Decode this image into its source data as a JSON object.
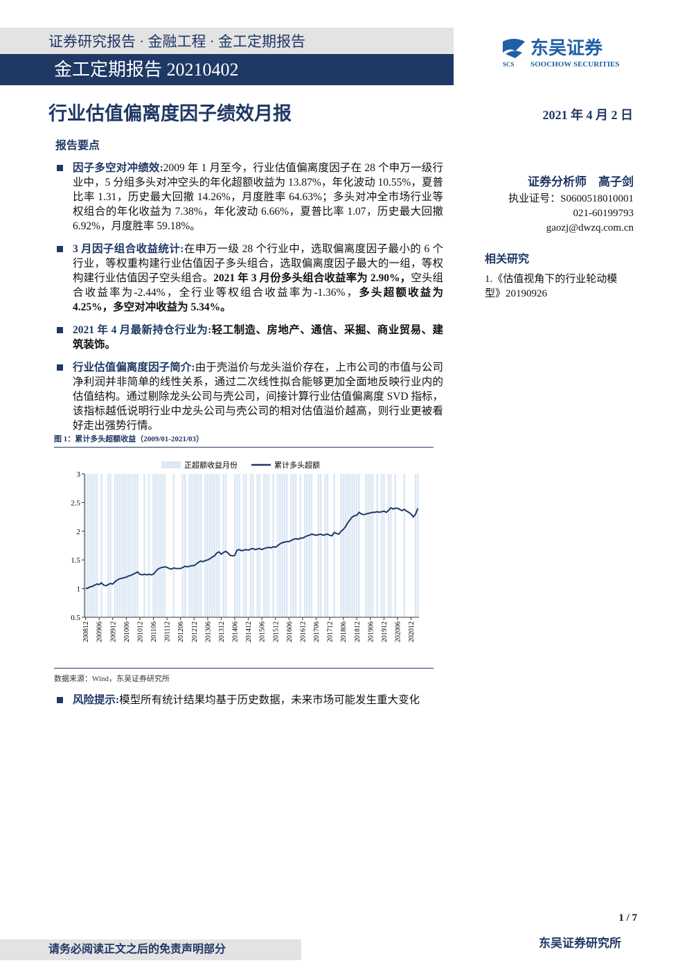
{
  "header": {
    "series": "证券研究报告 · 金融工程 · 金工定期报告",
    "banner": "金工定期报告 20210402",
    "logo_abbr": "SCS",
    "logo_name": "东吴证券",
    "logo_en": "SOOCHOW SECURITIES"
  },
  "title": "行业估值偏离度因子绩效月报",
  "date": "2021 年 4 月 2 日",
  "key_points": {
    "heading": "报告要点",
    "bullets": [
      {
        "label": "因子多空对冲绩效:",
        "parts": [
          {
            "text": "2009 年 1 月至今，行业估值偏离度因子在 28 个申万一级行业中，5 分组多头对冲空头的年化超额收益为 13.87%，年化波动 10.55%，夏普比率 1.31，历史最大回撤 14.26%，月度胜率 64.63%；多头对冲全市场行业等权组合的年化收益为 7.38%，年化波动 6.66%，夏普比率 1.07，历史最大回撤 6.92%，月度胜率 59.18%。"
          }
        ]
      },
      {
        "label": "3 月因子组合收益统计:",
        "parts": [
          {
            "text": "在申万一级 28 个行业中，选取偏离度因子最小的 6 个行业，等权重构建行业估值因子多头组合，选取偏离度因子最大的一组，等权构建行业估值因子空头组合。"
          },
          {
            "text": "2021 年 3 月份多头组合收益率为 2.90%，",
            "bold": true
          },
          {
            "text": "空头组合收益率为-2.44%，全行业等权组合收益率为-1.36%，"
          },
          {
            "text": "多头超额收益为 4.25%，多空对冲收益为 5.34%。",
            "bold": true
          }
        ]
      },
      {
        "label": "2021 年 4 月最新持仓行业为:",
        "parts": [
          {
            "text": "轻工制造、房地产、通信、采掘、商业贸易、建筑装饰。",
            "bold": true
          }
        ]
      },
      {
        "label": "行业估值偏离度因子简介:",
        "parts": [
          {
            "text": "由于壳溢价与龙头溢价存在，上市公司的市值与公司净利润并非简单的线性关系，通过二次线性拟合能够更加全面地反映行业内的估值结构。通过剔除龙头公司与壳公司，间接计算行业估值偏离度 SVD 指标，该指标越低说明行业中龙头公司与壳公司的相对估值溢价越高，则行业更被看好走出强势行情。"
          }
        ]
      }
    ]
  },
  "analyst": {
    "role": "证券分析师",
    "name": "高子剑",
    "license": "执业证号：S0600518010001",
    "phone": "021-60199793",
    "email": "gaozj@dwzq.com.cn"
  },
  "related": {
    "heading": "相关研究",
    "items": [
      "1.《估值视角下的行业轮动模型》20190926"
    ]
  },
  "figure": {
    "caption": "图 1：累计多头超额收益（2009/01-2021/03）",
    "source": "数据来源：Wind，东吴证券研究所"
  },
  "chart_data": {
    "type": "bar-line",
    "categories": [
      "200812",
      null,
      null,
      null,
      null,
      null,
      "200906",
      null,
      null,
      null,
      null,
      null,
      "200912",
      null,
      null,
      null,
      null,
      null,
      "201006",
      null,
      null,
      null,
      null,
      null,
      "201012",
      null,
      null,
      null,
      null,
      null,
      "201106",
      null,
      null,
      null,
      null,
      null,
      "201112",
      null,
      null,
      null,
      null,
      null,
      "201206",
      null,
      null,
      null,
      null,
      null,
      "201212",
      null,
      null,
      null,
      null,
      null,
      "201306",
      null,
      null,
      null,
      null,
      null,
      "201312",
      null,
      null,
      null,
      null,
      null,
      "201406",
      null,
      null,
      null,
      null,
      null,
      "201412",
      null,
      null,
      null,
      null,
      null,
      "201506",
      null,
      null,
      null,
      null,
      null,
      "201512",
      null,
      null,
      null,
      null,
      null,
      "201606",
      null,
      null,
      null,
      null,
      null,
      "201612",
      null,
      null,
      null,
      null,
      null,
      "201706",
      null,
      null,
      null,
      null,
      null,
      "201712",
      null,
      null,
      null,
      null,
      null,
      "201806",
      null,
      null,
      null,
      null,
      null,
      "201812",
      null,
      null,
      null,
      null,
      null,
      "201906",
      null,
      null,
      null,
      null,
      null,
      "201912",
      null,
      null,
      null,
      null,
      null,
      "202006",
      null,
      null,
      null,
      null,
      null,
      "202012",
      null,
      null,
      null
    ],
    "series": [
      {
        "name": "正超额收益月份",
        "color": "#dce8f4",
        "type": "bar",
        "axis": "y2",
        "values": [
          1,
          1,
          1,
          1,
          1,
          1,
          0,
          1,
          0,
          0,
          1,
          1,
          0,
          1,
          1,
          1,
          1,
          1,
          1,
          1,
          1,
          1,
          1,
          1,
          0,
          0,
          1,
          0,
          1,
          0,
          1,
          1,
          1,
          1,
          1,
          1,
          0,
          0,
          0,
          1,
          0,
          0,
          0,
          1,
          1,
          0,
          1,
          1,
          1,
          1,
          1,
          1,
          0,
          1,
          1,
          1,
          1,
          1,
          1,
          1,
          0,
          1,
          1,
          0,
          0,
          0,
          1,
          1,
          1,
          0,
          1,
          1,
          0,
          1,
          1,
          0,
          1,
          1,
          0,
          1,
          1,
          1,
          0,
          1,
          0,
          1,
          1,
          1,
          1,
          1,
          0,
          1,
          1,
          1,
          0,
          1,
          0,
          1,
          1,
          1,
          1,
          0,
          0,
          1,
          1,
          0,
          1,
          1,
          0,
          0,
          1,
          0,
          0,
          1,
          1,
          1,
          1,
          1,
          1,
          1,
          1,
          1,
          0,
          0,
          1,
          1,
          1,
          1,
          0,
          1,
          0,
          1,
          1,
          0,
          1,
          1,
          0,
          1,
          0,
          0,
          0,
          1,
          0,
          0,
          0,
          0,
          1,
          1
        ]
      },
      {
        "name": "累计多头超额",
        "color": "#1f3864",
        "type": "line",
        "values": [
          1.0,
          1.01,
          1.03,
          1.04,
          1.06,
          1.08,
          1.07,
          1.1,
          1.06,
          1.05,
          1.07,
          1.09,
          1.08,
          1.12,
          1.15,
          1.17,
          1.18,
          1.19,
          1.2,
          1.22,
          1.23,
          1.25,
          1.27,
          1.29,
          1.25,
          1.24,
          1.25,
          1.24,
          1.25,
          1.24,
          1.25,
          1.3,
          1.34,
          1.36,
          1.37,
          1.38,
          1.37,
          1.35,
          1.34,
          1.36,
          1.35,
          1.35,
          1.35,
          1.37,
          1.39,
          1.38,
          1.39,
          1.4,
          1.4,
          1.43,
          1.46,
          1.48,
          1.47,
          1.49,
          1.5,
          1.52,
          1.55,
          1.57,
          1.62,
          1.64,
          1.6,
          1.63,
          1.65,
          1.62,
          1.58,
          1.57,
          1.58,
          1.67,
          1.68,
          1.66,
          1.67,
          1.68,
          1.67,
          1.69,
          1.7,
          1.68,
          1.69,
          1.7,
          1.68,
          1.7,
          1.71,
          1.72,
          1.71,
          1.73,
          1.72,
          1.75,
          1.78,
          1.8,
          1.81,
          1.82,
          1.82,
          1.84,
          1.86,
          1.87,
          1.86,
          1.88,
          1.88,
          1.9,
          1.92,
          1.93,
          1.95,
          1.94,
          1.93,
          1.94,
          1.95,
          1.93,
          1.94,
          1.95,
          1.93,
          1.92,
          1.98,
          1.96,
          1.95,
          2.0,
          2.03,
          2.08,
          2.15,
          2.2,
          2.25,
          2.27,
          2.28,
          2.33,
          2.3,
          2.29,
          2.3,
          2.31,
          2.32,
          2.33,
          2.33,
          2.34,
          2.33,
          2.34,
          2.35,
          2.33,
          2.36,
          2.41,
          2.39,
          2.4,
          2.4,
          2.38,
          2.36,
          2.38,
          2.35,
          2.33,
          2.3,
          2.25,
          2.3,
          2.4
        ]
      }
    ],
    "ylim": [
      0.5,
      3
    ],
    "yticks": [
      0.5,
      1,
      1.5,
      2,
      2.5,
      3
    ],
    "y2lim": [
      0,
      1
    ],
    "legend": "top"
  },
  "risk": {
    "label": "风险提示:",
    "parts": [
      {
        "text": "模型所有统计结果均基于历史数据，未来市场可能发生重大变化"
      }
    ]
  },
  "footer": {
    "page": "1 / 7",
    "disclaimer": "请务必阅读正文之后的免责声明部分",
    "firm": "东吴证券研究所"
  }
}
